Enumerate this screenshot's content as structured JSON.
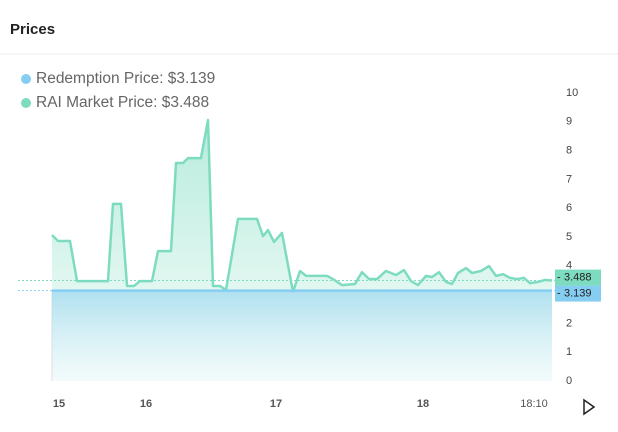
{
  "header": {
    "title": "Prices"
  },
  "chart_data": {
    "type": "area",
    "x": [
      0,
      1.2,
      3.6,
      5,
      11.2,
      12.2,
      13.8,
      15,
      16.4,
      17.6,
      20,
      21.2,
      23.8,
      24.8,
      26.2,
      27.2,
      29.8,
      31.2,
      32.2,
      33.6,
      34.8,
      37.2,
      41,
      42.2,
      43.2,
      44.4,
      46,
      48.2,
      49.6,
      50.8,
      55,
      56.2,
      58,
      60.6,
      62,
      63.4,
      65,
      66.8,
      68.8,
      70.4,
      71.8,
      73.2,
      74.8,
      76,
      77.4,
      78.8,
      80,
      81.2,
      82.8,
      84,
      85.8,
      87.4,
      88.8,
      90.2,
      91.6,
      93,
      94.4,
      95.6,
      97.2,
      98.6,
      100
    ],
    "series": [
      {
        "name": "Redemption Price: $3.139",
        "color": "#86cdf2",
        "x": [
          0,
          100
        ],
        "values": [
          3.139,
          3.139
        ],
        "last_value": 3.139
      },
      {
        "name": "RAI Market Price: $3.488",
        "color": "#7ddcc0",
        "values": [
          5.07,
          4.86,
          4.86,
          3.47,
          3.47,
          6.15,
          6.15,
          3.3,
          3.3,
          3.47,
          3.47,
          4.51,
          4.51,
          7.57,
          7.57,
          7.74,
          7.74,
          9.06,
          3.3,
          3.3,
          3.16,
          5.63,
          5.63,
          5.03,
          5.24,
          4.83,
          5.14,
          3.09,
          3.82,
          3.65,
          3.65,
          3.54,
          3.33,
          3.37,
          3.78,
          3.54,
          3.54,
          3.82,
          3.68,
          3.85,
          3.47,
          3.33,
          3.65,
          3.61,
          3.78,
          3.44,
          3.37,
          3.75,
          3.92,
          3.75,
          3.82,
          3.99,
          3.65,
          3.71,
          3.58,
          3.54,
          3.58,
          3.4,
          3.44,
          3.51,
          3.488
        ],
        "last_value": 3.488
      }
    ],
    "xlim": [
      0,
      100
    ],
    "xticks": [
      {
        "value": 1.4,
        "label": "15"
      },
      {
        "value": 18.8,
        "label": "16"
      },
      {
        "value": 44.8,
        "label": "17"
      },
      {
        "value": 74.2,
        "label": "18"
      },
      {
        "value": 96.4,
        "label": "18:10"
      }
    ],
    "ylim": [
      0,
      10
    ],
    "yticks": [
      0,
      1,
      2,
      3,
      4,
      5,
      6,
      7,
      8,
      9,
      10
    ]
  }
}
